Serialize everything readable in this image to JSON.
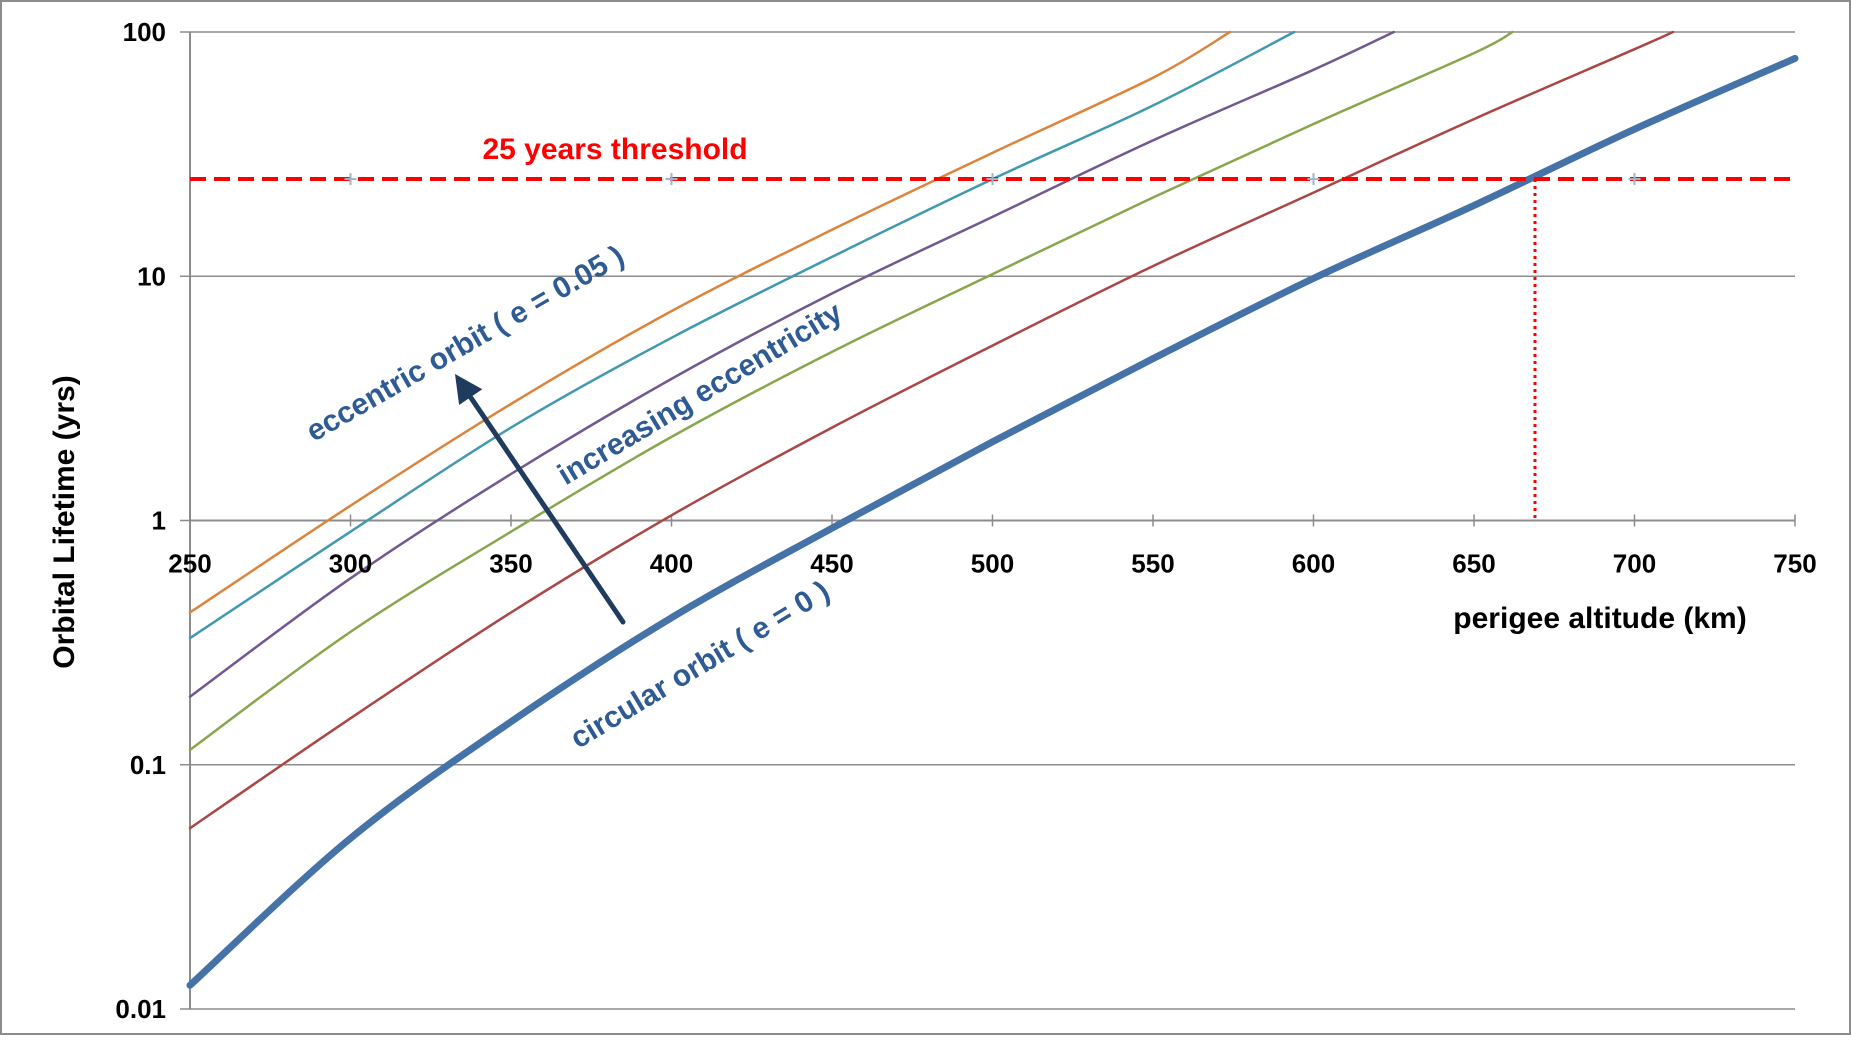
{
  "chart_data": {
    "type": "line",
    "title": "",
    "xlabel": "perigee altitude  (km)",
    "ylabel": "Orbital Lifetime (yrs)",
    "x_range": [
      250,
      750
    ],
    "y_range": [
      0.01,
      100
    ],
    "y_scale": "log",
    "grid": "horizontal",
    "x_ticks": [
      "250",
      "300",
      "350",
      "400",
      "450",
      "500",
      "550",
      "600",
      "650",
      "700",
      "750"
    ],
    "y_ticks": [
      "100",
      "10",
      "1",
      "0.1",
      "0.01"
    ],
    "series": [
      {
        "color": "#4572A7",
        "width": "thick",
        "x": [
          250,
          300,
          350,
          400,
          450,
          500,
          550,
          600,
          650,
          700,
          750
        ],
        "y": [
          0.0125,
          0.05,
          0.15,
          0.4,
          0.93,
          2.1,
          4.6,
          9.8,
          19.5,
          40,
          78
        ]
      },
      {
        "color": "#AA4643",
        "width": "thin",
        "x": [
          250,
          300,
          350,
          400,
          450,
          500,
          550,
          600,
          650,
          700,
          712
        ],
        "y": [
          0.055,
          0.155,
          0.42,
          1.05,
          2.4,
          5.2,
          11,
          22,
          44,
          85,
          100
        ]
      },
      {
        "color": "#89A54E",
        "width": "thin",
        "x": [
          250,
          300,
          350,
          400,
          450,
          500,
          550,
          600,
          650,
          662
        ],
        "y": [
          0.115,
          0.35,
          0.9,
          2.2,
          4.9,
          10.2,
          21,
          42,
          82,
          100
        ]
      },
      {
        "color": "#71588F",
        "width": "thin",
        "x": [
          250,
          300,
          350,
          400,
          450,
          500,
          550,
          600,
          625
        ],
        "y": [
          0.19,
          0.58,
          1.55,
          3.8,
          8.5,
          17.5,
          36,
          70,
          100
        ]
      },
      {
        "color": "#4198AF",
        "width": "thin",
        "x": [
          250,
          300,
          350,
          400,
          450,
          500,
          550,
          594
        ],
        "y": [
          0.33,
          0.9,
          2.4,
          5.6,
          12,
          25,
          50,
          100
        ]
      },
      {
        "color": "#DB843D",
        "width": "thin",
        "x": [
          250,
          300,
          350,
          400,
          450,
          500,
          550,
          574
        ],
        "y": [
          0.42,
          1.15,
          3.0,
          7.2,
          15.5,
          32,
          65,
          100
        ]
      }
    ],
    "threshold": {
      "y": 25,
      "label": "25 years threshold",
      "color": "#FF0000",
      "markers_x": [
        300,
        400,
        500,
        600,
        700
      ]
    },
    "dropline": {
      "x": 669,
      "y": 25,
      "color": "#FF0000"
    },
    "annotations": {
      "eccentric": "eccentric orbit  ( e = 0.05 )",
      "increasing": "increasing eccentricity",
      "circular": "circular orbit  ( e = 0 )"
    },
    "annotation_color": "#2E5B94",
    "arrow": {
      "color": "#1F3B5E",
      "from": [
        385,
        0.2
      ],
      "tail_dir": "up-left"
    }
  }
}
